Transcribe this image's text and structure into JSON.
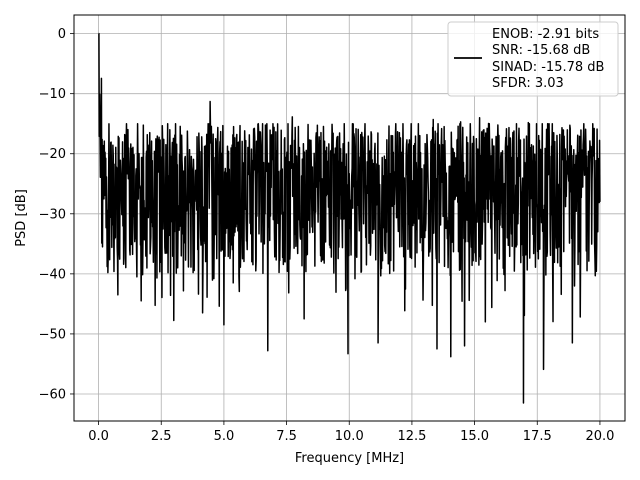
{
  "chart_data": {
    "type": "line",
    "xlabel": "Frequency [MHz]",
    "ylabel": "PSD [dB]",
    "xlim": [
      -0.98,
      21.0
    ],
    "ylim": [
      -64.5,
      3.1
    ],
    "xticks": [
      0.0,
      2.5,
      5.0,
      7.5,
      10.0,
      12.5,
      15.0,
      17.5,
      20.0
    ],
    "xtick_labels": [
      "0.0",
      "2.5",
      "5.0",
      "7.5",
      "10.0",
      "12.5",
      "15.0",
      "17.5",
      "20.0"
    ],
    "yticks": [
      0,
      -10,
      -20,
      -30,
      -40,
      -50,
      -60
    ],
    "ytick_labels": [
      "0",
      "−10",
      "−20",
      "−30",
      "−40",
      "−50",
      "−60"
    ],
    "grid": true,
    "legend_position": "top-right",
    "series": [
      {
        "name": "ENOB: -2.91 bits\nSNR: -15.68 dB\nSINAD: -15.78 dB\nSFDR: 3.03",
        "color": "#000000",
        "envelope": {
          "x_start": 0.0,
          "x_end": 20.0,
          "peak_value": 0.0,
          "noise_floor_typical": -24.0,
          "noise_upper_typical": -15.0,
          "noise_lower_typical": -40.0,
          "min_value": -61.5,
          "min_at": 16.95,
          "notable_dips": [
            {
              "x": 0.77,
              "y": -43.5
            },
            {
              "x": 1.7,
              "y": -44.5
            },
            {
              "x": 4.15,
              "y": -46.5
            },
            {
              "x": 5.0,
              "y": -48.5
            },
            {
              "x": 6.75,
              "y": -52.8
            },
            {
              "x": 8.2,
              "y": -47.5
            },
            {
              "x": 9.95,
              "y": -53.3
            },
            {
              "x": 11.15,
              "y": -51.5
            },
            {
              "x": 13.5,
              "y": -52.5
            },
            {
              "x": 14.05,
              "y": -53.8
            },
            {
              "x": 14.6,
              "y": -52.0
            },
            {
              "x": 16.95,
              "y": -61.5
            },
            {
              "x": 17.75,
              "y": -55.9
            },
            {
              "x": 18.9,
              "y": -51.5
            }
          ],
          "notable_spikes": [
            {
              "x": 4.45,
              "y": -11.3
            },
            {
              "x": 13.35,
              "y": -14.3
            },
            {
              "x": 15.2,
              "y": -14.0
            }
          ]
        }
      }
    ]
  },
  "legend": {
    "lines": [
      "ENOB: -2.91 bits",
      "SNR: -15.68 dB",
      "SINAD: -15.78 dB",
      "SFDR: 3.03"
    ]
  }
}
